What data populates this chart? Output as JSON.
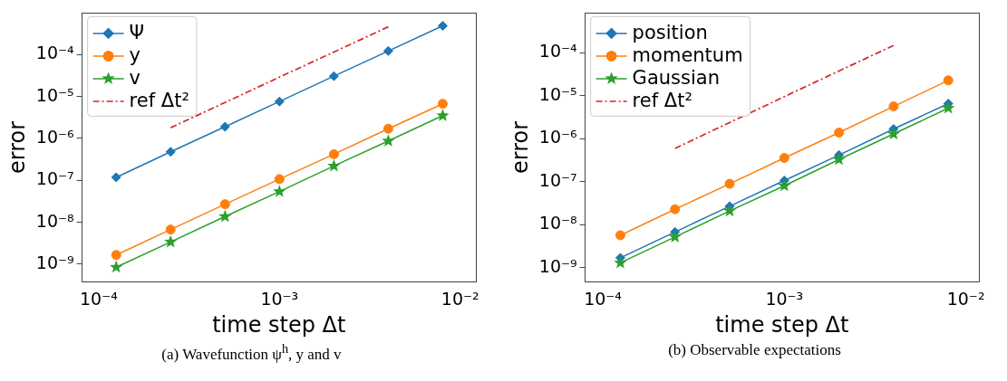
{
  "chart_data": [
    {
      "type": "line",
      "title": "(a) Wavefunction ψ$^{h}$, y and v",
      "xlabel": "time step Δt",
      "ylabel": "error",
      "log": "xy",
      "grid": false,
      "legend": "top left",
      "x": [
        0.000125,
        0.00025,
        0.0005,
        0.001,
        0.002,
        0.004,
        0.008
      ],
      "xlim": [
        8.1e-05,
        0.0122
      ],
      "ylim": [
        3.8e-10,
        0.00098
      ],
      "xticks": [
        {
          "value": 0.0001,
          "label": "10⁻⁴"
        },
        {
          "value": 0.001,
          "label": "10⁻³"
        },
        {
          "value": 0.01,
          "label": "10⁻²"
        }
      ],
      "yticks": [
        {
          "value": 1e-09,
          "label": "10⁻⁹"
        },
        {
          "value": 1e-08,
          "label": "10⁻⁸"
        },
        {
          "value": 1e-07,
          "label": "10⁻⁷"
        },
        {
          "value": 1e-06,
          "label": "10⁻⁶"
        },
        {
          "value": 1e-05,
          "label": "10⁻⁵"
        },
        {
          "value": 0.0001,
          "label": "10⁻⁴"
        }
      ],
      "series": [
        {
          "name": "Ψ",
          "color": "#1f77b4",
          "marker": "diamond",
          "values": [
            1.18e-07,
            4.8e-07,
            1.9e-06,
            7.6e-06,
            3.06e-05,
            0.000122,
            0.000485
          ]
        },
        {
          "name": "y",
          "color": "#ff7f0e",
          "marker": "circle",
          "values": [
            1.66e-09,
            6.7e-09,
            2.7e-08,
            1.07e-07,
            4.2e-07,
            1.7e-06,
            6.7e-06
          ]
        },
        {
          "name": "v",
          "color": "#2ca02c",
          "marker": "star",
          "values": [
            8.5e-10,
            3.4e-09,
            1.37e-08,
            5.4e-08,
            2.2e-07,
            8.7e-07,
            3.5e-06
          ]
        },
        {
          "name": "ref Δt²",
          "color": "#d62728",
          "marker": "none",
          "line_style": "dashed",
          "values": [
            null,
            1.8e-06,
            7.2e-06,
            2.9e-05,
            0.000115,
            0.00046,
            null
          ]
        }
      ]
    },
    {
      "type": "line",
      "title": "(b) Observable expectations",
      "xlabel": "time step Δt",
      "ylabel": "error",
      "log": "xy",
      "grid": false,
      "legend": "top left",
      "x": [
        0.000125,
        0.00025,
        0.0005,
        0.001,
        0.002,
        0.004,
        0.008
      ],
      "xlim": [
        8e-05,
        0.0118
      ],
      "ylim": [
        4.7e-10,
        0.00085
      ],
      "xticks": [
        {
          "value": 0.0001,
          "label": "10⁻⁴"
        },
        {
          "value": 0.001,
          "label": "10⁻³"
        },
        {
          "value": 0.01,
          "label": "10⁻²"
        }
      ],
      "yticks": [
        {
          "value": 1e-09,
          "label": "10⁻⁹"
        },
        {
          "value": 1e-08,
          "label": "10⁻⁸"
        },
        {
          "value": 1e-07,
          "label": "10⁻⁷"
        },
        {
          "value": 1e-06,
          "label": "10⁻⁶"
        },
        {
          "value": 1e-05,
          "label": "10⁻⁵"
        },
        {
          "value": 0.0001,
          "label": "10⁻⁴"
        }
      ],
      "series": [
        {
          "name": "position",
          "color": "#1f77b4",
          "marker": "diamond",
          "values": [
            1.7e-09,
            6.8e-09,
            2.7e-08,
            1.07e-07,
            4.2e-07,
            1.7e-06,
            6.6e-06
          ]
        },
        {
          "name": "momentum",
          "color": "#ff7f0e",
          "marker": "circle",
          "values": [
            5.7e-09,
            2.3e-08,
            9e-08,
            3.6e-07,
            1.4e-06,
            5.7e-06,
            2.3e-05
          ]
        },
        {
          "name": "Gaussian",
          "color": "#2ca02c",
          "marker": "star",
          "values": [
            1.3e-09,
            5.2e-09,
            2.1e-08,
            8.1e-08,
            3.3e-07,
            1.3e-06,
            5.2e-06
          ]
        },
        {
          "name": "ref Δt²",
          "color": "#d62728",
          "marker": "none",
          "line_style": "dashed",
          "values": [
            null,
            6e-07,
            2.4e-06,
            9.6e-06,
            3.8e-05,
            0.00015,
            null
          ]
        }
      ]
    }
  ]
}
